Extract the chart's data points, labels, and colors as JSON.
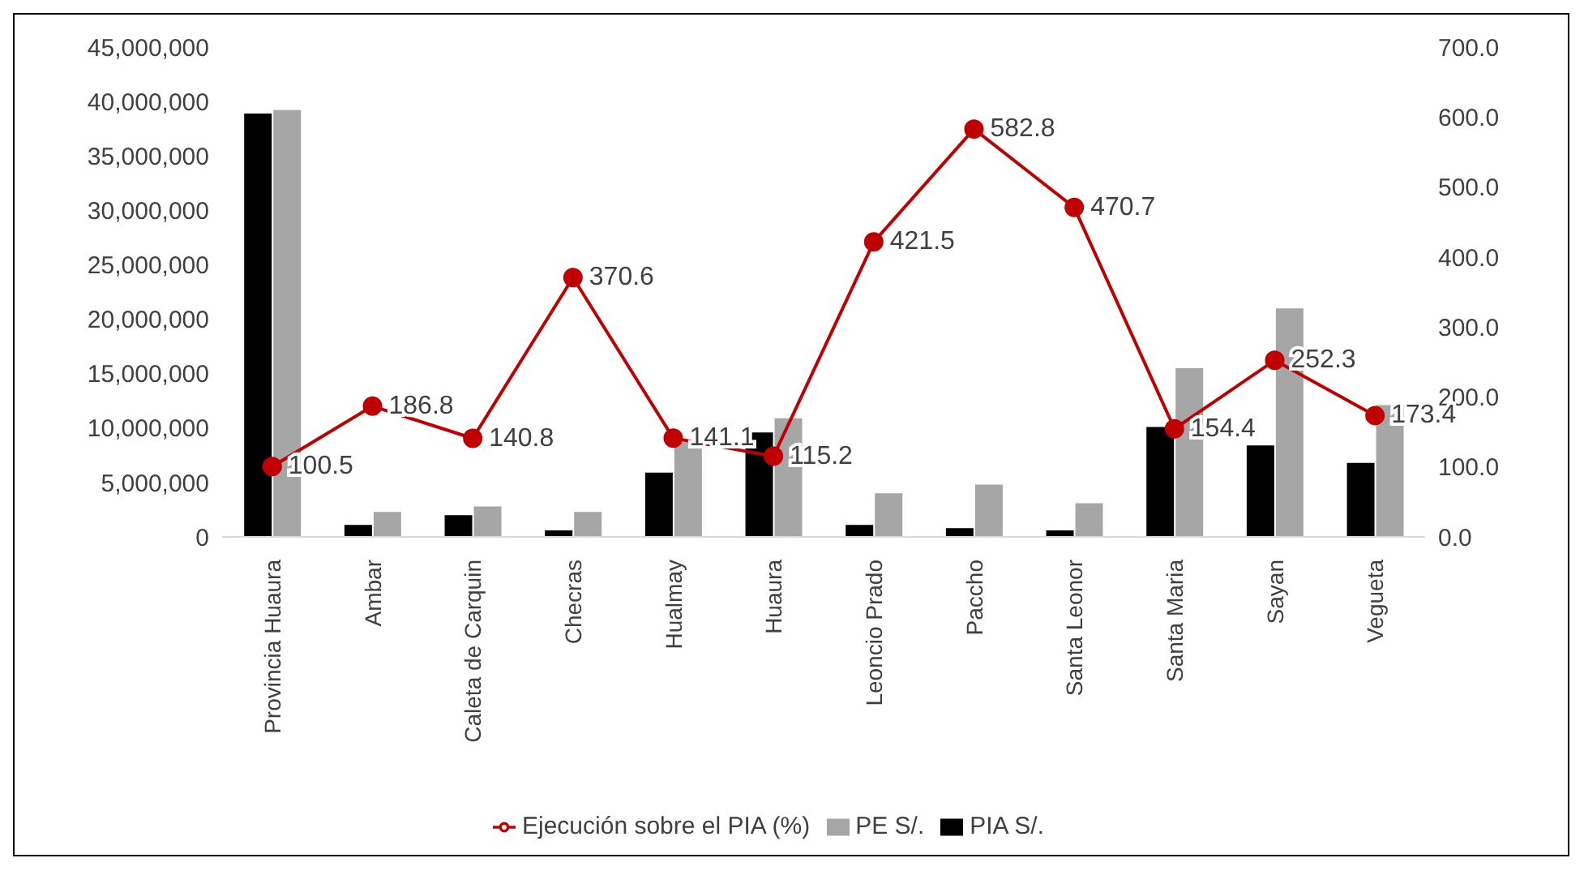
{
  "chart_data": {
    "type": "bar",
    "categories": [
      "Provincia Huaura",
      "Ambar",
      "Caleta de Carquin",
      "Checras",
      "Hualmay",
      "Huaura",
      "Leoncio Prado",
      "Paccho",
      "Santa Leonor",
      "Santa Maria",
      "Sayan",
      "Vegueta"
    ],
    "series": [
      {
        "name": "PIA S/.",
        "color": "#000000",
        "values": [
          38900000,
          1100000,
          2000000,
          600000,
          5900000,
          9600000,
          1100000,
          800000,
          600000,
          10100000,
          8400000,
          6800000
        ]
      },
      {
        "name": "PE S/.",
        "color": "#a6a6a6",
        "values": [
          39200000,
          2300000,
          2800000,
          2300000,
          8700000,
          10900000,
          4000000,
          4800000,
          3100000,
          15500000,
          21000000,
          12100000
        ],
        "axis": "y"
      },
      {
        "name": "Ejecución sobre el PIA (%)",
        "type": "line",
        "color": "#c00000",
        "axis": "y2",
        "values": [
          100.5,
          186.8,
          140.8,
          370.6,
          141.1,
          115.2,
          421.5,
          582.8,
          470.7,
          154.4,
          252.3,
          173.4
        ],
        "value_labels": [
          "100.5",
          "186.8",
          "140.8",
          "370.6",
          "141.1",
          "115.2",
          "421.5",
          "582.8",
          "470.7",
          "154.4",
          "252.3",
          "173.4"
        ]
      }
    ],
    "ylim": [
      0,
      45000000
    ],
    "yticks": [
      {
        "value": 0,
        "label": "0"
      },
      {
        "value": 5000000,
        "label": "5,000,000"
      },
      {
        "value": 10000000,
        "label": "10,000,000"
      },
      {
        "value": 15000000,
        "label": "15,000,000"
      },
      {
        "value": 20000000,
        "label": "20,000,000"
      },
      {
        "value": 25000000,
        "label": "25,000,000"
      },
      {
        "value": 30000000,
        "label": "30,000,000"
      },
      {
        "value": 35000000,
        "label": "35,000,000"
      },
      {
        "value": 40000000,
        "label": "40,000,000"
      },
      {
        "value": 45000000,
        "label": "45,000,000"
      }
    ],
    "y2lim": [
      0,
      700
    ],
    "y2ticks": [
      {
        "value": 0,
        "label": "0.0"
      },
      {
        "value": 100,
        "label": "100.0"
      },
      {
        "value": 200,
        "label": "200.0"
      },
      {
        "value": 300,
        "label": "300.0"
      },
      {
        "value": 400,
        "label": "400.0"
      },
      {
        "value": 500,
        "label": "500.0"
      },
      {
        "value": 600,
        "label": "600.0"
      },
      {
        "value": 700,
        "label": "700.0"
      }
    ],
    "marker": "circle",
    "legend": "bottom",
    "grid": false
  }
}
